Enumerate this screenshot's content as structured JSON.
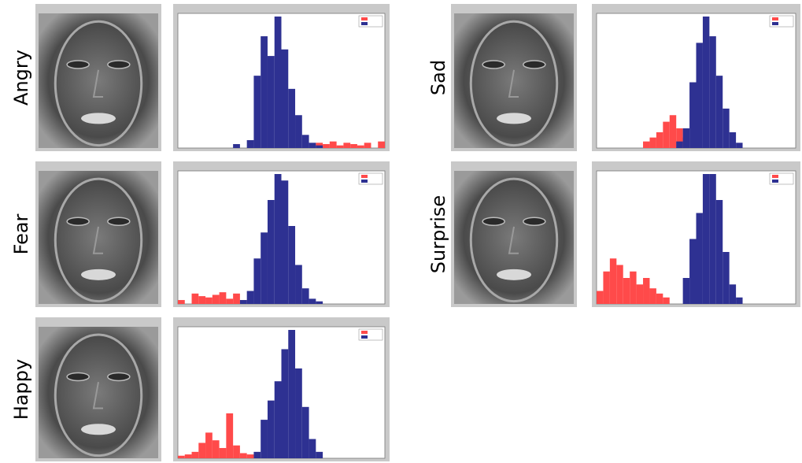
{
  "chart_data": [
    {
      "type": "histogram",
      "label": "Angry",
      "bins": [
        0,
        1,
        2,
        3,
        4,
        5,
        6,
        7,
        8,
        9,
        10,
        11,
        12,
        13,
        14,
        15,
        16,
        17,
        18,
        19,
        20,
        21,
        22,
        23,
        24,
        25,
        26,
        27,
        28,
        29,
        30
      ],
      "xlim": [
        0,
        30
      ],
      "ylim": [
        0,
        100
      ],
      "series": [
        {
          "color": "#ff4a4a",
          "values": [
            0,
            0,
            0,
            0,
            0,
            0,
            0,
            0,
            0,
            0,
            0,
            0,
            0,
            0,
            0,
            0,
            0,
            0,
            0,
            0,
            4,
            3,
            5,
            2,
            4,
            3,
            2,
            4,
            0,
            5
          ]
        },
        {
          "color": "#2e3192",
          "values": [
            0,
            0,
            0,
            0,
            0,
            0,
            0,
            0,
            3,
            0,
            6,
            55,
            85,
            70,
            100,
            75,
            45,
            25,
            10,
            4,
            2,
            0,
            0,
            0,
            0,
            0,
            0,
            0,
            0,
            0
          ]
        }
      ]
    },
    {
      "type": "histogram",
      "label": "Fear",
      "bins": [
        0,
        1,
        2,
        3,
        4,
        5,
        6,
        7,
        8,
        9,
        10,
        11,
        12,
        13,
        14,
        15,
        16,
        17,
        18,
        19,
        20,
        21,
        22,
        23,
        24,
        25,
        26,
        27,
        28,
        29,
        30
      ],
      "xlim": [
        0,
        30
      ],
      "ylim": [
        0,
        100
      ],
      "series": [
        {
          "color": "#ff4a4a",
          "values": [
            3,
            0,
            8,
            6,
            5,
            7,
            9,
            4,
            8,
            3,
            0,
            0,
            0,
            0,
            0,
            0,
            0,
            0,
            0,
            0,
            0,
            0,
            0,
            0,
            0,
            0,
            0,
            0,
            0,
            0
          ]
        },
        {
          "color": "#2e3192",
          "values": [
            0,
            0,
            0,
            0,
            0,
            0,
            0,
            0,
            0,
            3,
            10,
            35,
            55,
            80,
            100,
            95,
            60,
            30,
            12,
            4,
            2,
            0,
            0,
            0,
            0,
            0,
            0,
            0,
            0,
            0
          ]
        }
      ]
    },
    {
      "type": "histogram",
      "label": "Happy",
      "bins": [
        0,
        1,
        2,
        3,
        4,
        5,
        6,
        7,
        8,
        9,
        10,
        11,
        12,
        13,
        14,
        15,
        16,
        17,
        18,
        19,
        20,
        21,
        22,
        23,
        24,
        25,
        26,
        27,
        28,
        29,
        30
      ],
      "xlim": [
        0,
        30
      ],
      "ylim": [
        0,
        100
      ],
      "series": [
        {
          "color": "#ff4a4a",
          "values": [
            2,
            3,
            5,
            12,
            20,
            14,
            8,
            35,
            10,
            4,
            3,
            0,
            0,
            0,
            0,
            0,
            0,
            0,
            0,
            0,
            0,
            0,
            0,
            0,
            0,
            0,
            0,
            0,
            0,
            0
          ]
        },
        {
          "color": "#2e3192",
          "values": [
            0,
            0,
            0,
            0,
            0,
            0,
            0,
            0,
            0,
            0,
            0,
            5,
            30,
            45,
            60,
            85,
            100,
            70,
            40,
            15,
            5,
            0,
            0,
            0,
            0,
            0,
            0,
            0,
            0,
            0
          ]
        }
      ]
    },
    {
      "type": "histogram",
      "label": "Sad",
      "bins": [
        0,
        1,
        2,
        3,
        4,
        5,
        6,
        7,
        8,
        9,
        10,
        11,
        12,
        13,
        14,
        15,
        16,
        17,
        18,
        19,
        20,
        21,
        22,
        23,
        24,
        25,
        26,
        27,
        28,
        29,
        30
      ],
      "xlim": [
        0,
        30
      ],
      "ylim": [
        0,
        100
      ],
      "series": [
        {
          "color": "#ff4a4a",
          "values": [
            0,
            0,
            0,
            0,
            0,
            0,
            0,
            5,
            8,
            12,
            20,
            25,
            15,
            8,
            0,
            0,
            0,
            0,
            0,
            0,
            0,
            0,
            0,
            0,
            0,
            0,
            0,
            0,
            0,
            0
          ]
        },
        {
          "color": "#2e3192",
          "values": [
            0,
            0,
            0,
            0,
            0,
            0,
            0,
            0,
            0,
            0,
            0,
            0,
            5,
            15,
            50,
            80,
            100,
            85,
            55,
            30,
            12,
            4,
            0,
            0,
            0,
            0,
            0,
            0,
            0,
            0
          ]
        }
      ]
    },
    {
      "type": "histogram",
      "label": "Surprise",
      "bins": [
        0,
        1,
        2,
        3,
        4,
        5,
        6,
        7,
        8,
        9,
        10,
        11,
        12,
        13,
        14,
        15,
        16,
        17,
        18,
        19,
        20,
        21,
        22,
        23,
        24,
        25,
        26,
        27,
        28,
        29,
        30
      ],
      "xlim": [
        0,
        30
      ],
      "ylim": [
        0,
        100
      ],
      "series": [
        {
          "color": "#ff4a4a",
          "values": [
            10,
            25,
            35,
            30,
            20,
            25,
            15,
            20,
            12,
            8,
            5,
            0,
            0,
            0,
            0,
            0,
            0,
            0,
            0,
            0,
            0,
            0,
            0,
            0,
            0,
            0,
            0,
            0,
            0,
            0
          ]
        },
        {
          "color": "#2e3192",
          "values": [
            0,
            0,
            0,
            0,
            0,
            0,
            0,
            0,
            0,
            0,
            0,
            0,
            0,
            20,
            50,
            70,
            100,
            100,
            80,
            40,
            15,
            5,
            0,
            0,
            0,
            0,
            0,
            0,
            0,
            0
          ]
        }
      ]
    }
  ]
}
